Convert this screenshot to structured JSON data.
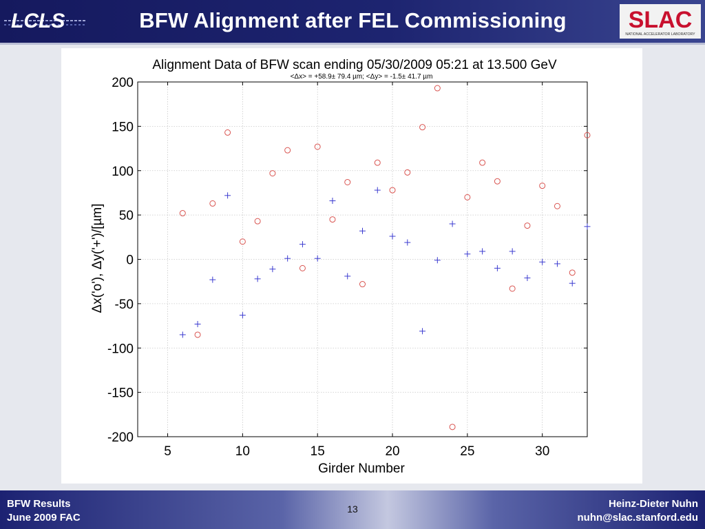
{
  "slide": {
    "title": "BFW Alignment after FEL Commissioning",
    "logo_left": "LCLS",
    "logo_right": "SLAC",
    "logo_right_subtitle": "NATIONAL ACCELERATOR LABORATORY",
    "page_number": "13"
  },
  "footer": {
    "left_line1": "BFW Results",
    "left_line2": "June 2009 FAC",
    "right_line1": "Heinz-Dieter Nuhn",
    "right_line2": "nuhn@slac.stanford.edu"
  },
  "colors": {
    "header_bg": "#1d2470",
    "x_series": "#d9534f",
    "y_series": "#3a3ad0"
  },
  "chart_data": {
    "type": "scatter",
    "title": "Alignment Data of BFW scan ending 05/30/2009 05:21 at 13.500 GeV",
    "subtitle": "<Δx> = +58.9± 79.4 µm; <Δy> =  -1.5± 41.7 µm",
    "xlabel": "Girder Number",
    "ylabel": "Δx('o'), Δy('+')/[µm]",
    "xlim": [
      3,
      33
    ],
    "ylim": [
      -200,
      200
    ],
    "xticks": [
      5,
      10,
      15,
      20,
      25,
      30
    ],
    "yticks": [
      -200,
      -150,
      -100,
      -50,
      0,
      50,
      100,
      150,
      200
    ],
    "grid": true,
    "series": [
      {
        "marker": "o",
        "x": [
          6,
          7,
          8,
          9,
          10,
          11,
          12,
          13,
          14,
          15,
          16,
          17,
          18,
          19,
          20,
          21,
          22,
          23,
          24,
          25,
          26,
          27,
          28,
          29,
          30,
          31,
          32,
          33
        ],
        "values": [
          52,
          -85,
          63,
          143,
          20,
          43,
          97,
          123,
          -10,
          127,
          45,
          87,
          -28,
          109,
          78,
          98,
          149,
          193,
          -189,
          70,
          109,
          88,
          -33,
          38,
          83,
          60,
          -15,
          140
        ]
      },
      {
        "marker": "+",
        "x": [
          6,
          7,
          8,
          9,
          10,
          11,
          12,
          13,
          14,
          15,
          16,
          17,
          18,
          19,
          20,
          21,
          22,
          23,
          24,
          25,
          26,
          27,
          28,
          29,
          30,
          31,
          32,
          33
        ],
        "values": [
          -85,
          -73,
          -23,
          72,
          -63,
          -22,
          -11,
          1,
          17,
          1,
          66,
          -19,
          32,
          78,
          26,
          19,
          -81,
          -1,
          40,
          6,
          9,
          -10,
          9,
          -21,
          -3,
          -5,
          -27,
          37
        ]
      }
    ]
  }
}
